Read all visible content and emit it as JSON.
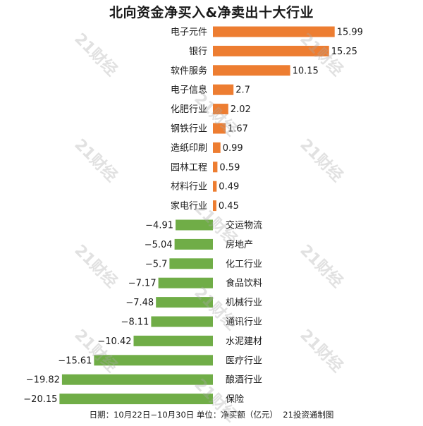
{
  "title": "北向资金净买入&净卖出十大行业",
  "footer": {
    "date_text": "日期：10月22日−10月30日 单位：净买额（亿元）",
    "source_text": "21投资通制图"
  },
  "watermark": "21财经",
  "colors": {
    "positive": "#ed7d31",
    "negative": "#70ad47",
    "text": "#1a1a1a"
  },
  "chart_data": {
    "type": "bar",
    "orientation": "horizontal",
    "title": "北向资金净买入&净卖出十大行业",
    "categories": [
      "电子元件",
      "银行",
      "软件服务",
      "电子信息",
      "化肥行业",
      "钢铁行业",
      "造纸印刷",
      "园林工程",
      "材料行业",
      "家电行业",
      "交运物流",
      "房地产",
      "化工行业",
      "食品饮料",
      "机械行业",
      "通讯行业",
      "水泥建材",
      "医疗行业",
      "酿酒行业",
      "保险"
    ],
    "values": [
      15.99,
      15.25,
      10.15,
      2.7,
      2.02,
      1.67,
      0.99,
      0.59,
      0.49,
      0.45,
      -4.91,
      -5.04,
      -5.7,
      -7.17,
      -7.48,
      -8.11,
      -10.42,
      -15.61,
      -19.82,
      -20.15
    ],
    "value_labels": [
      "15.99",
      "15.25",
      "10.15",
      "2.7",
      "2.02",
      "1.67",
      "0.99",
      "0.59",
      "0.49",
      "0.45",
      "−4.91",
      "−5.04",
      "−5.7",
      "−7.17",
      "−7.48",
      "−8.11",
      "−10.42",
      "−15.61",
      "−19.82",
      "−20.15"
    ],
    "xlim": [
      -20.15,
      15.99
    ],
    "grid": false,
    "legend": "none"
  }
}
